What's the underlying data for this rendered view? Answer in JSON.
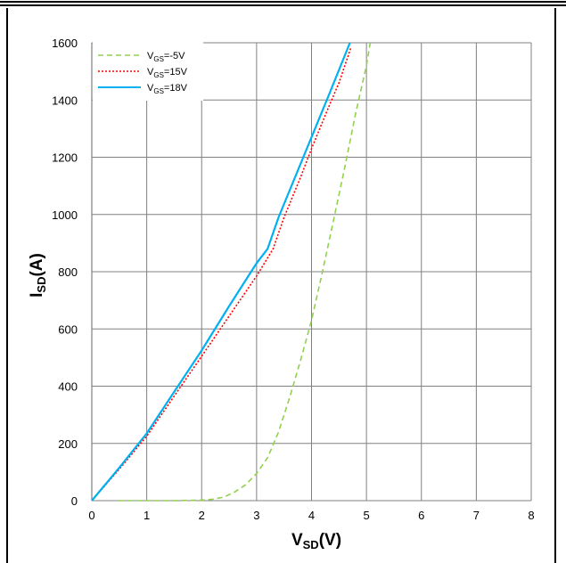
{
  "chart_data": {
    "type": "line",
    "title": "",
    "xlabel": {
      "main": "V",
      "sub": "SD",
      "unit": "(V)"
    },
    "ylabel": {
      "main": "I",
      "sub": "SD",
      "unit": "(A)"
    },
    "xlim": [
      0,
      8
    ],
    "ylim": [
      0,
      1600
    ],
    "x_ticks": [
      "0",
      "1",
      "2",
      "3",
      "4",
      "5",
      "6",
      "7",
      "8"
    ],
    "y_ticks": [
      "0",
      "200",
      "400",
      "600",
      "800",
      "1000",
      "1200",
      "1400",
      "1600"
    ],
    "grid": true,
    "legend_position": "top-left",
    "series": [
      {
        "name": "VGS=-5V",
        "label_main": "V",
        "label_sub": "GS",
        "label_rest": "=-5V",
        "color": "#92d050",
        "style": "dashed",
        "x": [
          0.5,
          1.0,
          1.5,
          2.0,
          2.2,
          2.4,
          2.6,
          2.8,
          3.0,
          3.2,
          3.4,
          3.6,
          3.8,
          4.0,
          4.2,
          4.4,
          4.6,
          4.8,
          5.0,
          5.07
        ],
        "y": [
          0,
          0,
          0,
          2,
          5,
          12,
          30,
          55,
          95,
          150,
          240,
          360,
          490,
          630,
          800,
          980,
          1160,
          1350,
          1520,
          1600
        ]
      },
      {
        "name": "VGS=15V",
        "label_main": "V",
        "label_sub": "GS",
        "label_rest": "=15V",
        "color": "#ff0000",
        "style": "dotted",
        "x": [
          0,
          0.5,
          1.0,
          1.5,
          2.0,
          2.5,
          3.0,
          3.3,
          3.5,
          3.8,
          4.0,
          4.3,
          4.5,
          4.72
        ],
        "y": [
          0,
          110,
          225,
          365,
          505,
          645,
          785,
          880,
          990,
          1130,
          1230,
          1370,
          1460,
          1585
        ]
      },
      {
        "name": "VGS=18V",
        "label_main": "V",
        "label_sub": "GS",
        "label_rest": "=18V",
        "color": "#00b0f0",
        "style": "solid",
        "x": [
          0,
          0.5,
          1.0,
          1.5,
          2.0,
          2.5,
          3.0,
          3.2,
          3.4,
          3.7,
          4.0,
          4.3,
          4.5,
          4.7
        ],
        "y": [
          0,
          115,
          235,
          380,
          525,
          680,
          830,
          880,
          990,
          1130,
          1270,
          1410,
          1505,
          1600
        ]
      }
    ]
  }
}
